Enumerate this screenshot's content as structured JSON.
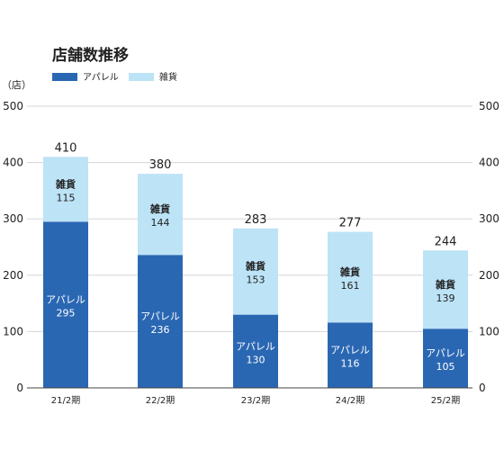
{
  "colors": {
    "apparel": "#2a67b3",
    "zakka": "#bde3f6",
    "grid": "#d5d5d5",
    "axis": "#444444"
  },
  "chart_data": {
    "type": "bar",
    "stacked": true,
    "title": "店舗数推移",
    "unit_label": "（店）",
    "categories": [
      "21/2期",
      "22/2期",
      "23/2期",
      "24/2期",
      "25/2期"
    ],
    "series": [
      {
        "name": "アパレル",
        "values": [
          295,
          236,
          130,
          116,
          105
        ]
      },
      {
        "name": "雑貨",
        "values": [
          115,
          144,
          153,
          161,
          139
        ]
      }
    ],
    "totals": [
      410,
      380,
      283,
      277,
      244
    ],
    "yticks": [
      0,
      100,
      200,
      300,
      400,
      500
    ],
    "ylim": [
      0,
      500
    ],
    "dual_y_axis": true,
    "grid": true,
    "legend_position": "top-left"
  }
}
